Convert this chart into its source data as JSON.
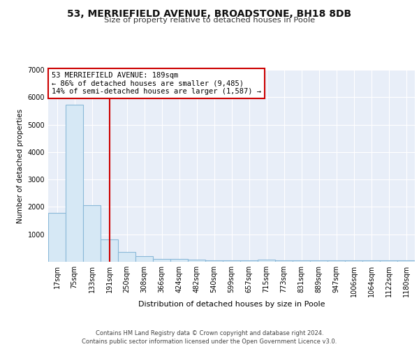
{
  "title": "53, MERRIEFIELD AVENUE, BROADSTONE, BH18 8DB",
  "subtitle": "Size of property relative to detached houses in Poole",
  "xlabel": "Distribution of detached houses by size in Poole",
  "ylabel": "Number of detached properties",
  "bin_labels": [
    "17sqm",
    "75sqm",
    "133sqm",
    "191sqm",
    "250sqm",
    "308sqm",
    "366sqm",
    "424sqm",
    "482sqm",
    "540sqm",
    "599sqm",
    "657sqm",
    "715sqm",
    "773sqm",
    "831sqm",
    "889sqm",
    "947sqm",
    "1006sqm",
    "1064sqm",
    "1122sqm",
    "1180sqm"
  ],
  "bar_heights": [
    1780,
    5720,
    2060,
    810,
    360,
    210,
    100,
    90,
    65,
    60,
    60,
    60,
    65,
    50,
    50,
    50,
    50,
    50,
    50,
    50,
    50
  ],
  "bar_color": "#d6e8f5",
  "bar_edge_color": "#8ab8d8",
  "red_line_index": 3,
  "annotation_text": "53 MERRIEFIELD AVENUE: 189sqm\n← 86% of detached houses are smaller (9,485)\n14% of semi-detached houses are larger (1,587) →",
  "annotation_box_color": "#ffffff",
  "annotation_box_edge_color": "#cc0000",
  "ylim": [
    0,
    7000
  ],
  "yticks": [
    0,
    1000,
    2000,
    3000,
    4000,
    5000,
    6000,
    7000
  ],
  "background_color": "#e8eef8",
  "grid_color": "#ffffff",
  "footer_line1": "Contains HM Land Registry data © Crown copyright and database right 2024.",
  "footer_line2": "Contains public sector information licensed under the Open Government Licence v3.0."
}
